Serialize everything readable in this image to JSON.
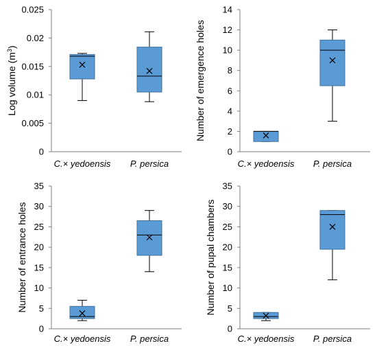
{
  "colors": {
    "box_fill": "#5b9bd5",
    "box_stroke": "#41719c",
    "line": "#000000",
    "axis": "#7f7f7f"
  },
  "chart_data": [
    {
      "type": "boxplot",
      "ylabel": "Log volume (m",
      "ylabel_superscript": "3",
      "ylabel_suffix": ")",
      "ylim": [
        0,
        0.025
      ],
      "yticks": [
        "0",
        "0.005",
        "0.01",
        "0.015",
        "0.02",
        "0.025"
      ],
      "categories": [
        "C.× yedoensis",
        "P. persica"
      ],
      "boxes": [
        {
          "min": 0.009,
          "q1": 0.0128,
          "median": 0.0168,
          "q3": 0.0171,
          "max": 0.0173,
          "mean": 0.0153
        },
        {
          "min": 0.0088,
          "q1": 0.0105,
          "median": 0.0133,
          "q3": 0.0184,
          "max": 0.0211,
          "mean": 0.0142
        }
      ]
    },
    {
      "type": "boxplot",
      "ylabel": "Number of emergence holes",
      "ylim": [
        0,
        14
      ],
      "yticks": [
        "0",
        "2",
        "4",
        "6",
        "8",
        "10",
        "12",
        "14"
      ],
      "categories": [
        "C.× yedoensis",
        "P. persica"
      ],
      "boxes": [
        {
          "min": 1,
          "q1": 1,
          "median": 2,
          "q3": 2,
          "max": 2,
          "mean": 1.6
        },
        {
          "min": 3,
          "q1": 6.5,
          "median": 10,
          "q3": 11,
          "max": 12,
          "mean": 9
        }
      ]
    },
    {
      "type": "boxplot",
      "ylabel": "Number of entrance holes",
      "ylim": [
        0,
        35
      ],
      "yticks": [
        "0",
        "5",
        "10",
        "15",
        "20",
        "25",
        "30",
        "35"
      ],
      "categories": [
        "C.× yedoensis",
        "P. persica"
      ],
      "boxes": [
        {
          "min": 2,
          "q1": 2.5,
          "median": 3,
          "q3": 5.5,
          "max": 7,
          "mean": 3.8
        },
        {
          "min": 14,
          "q1": 18,
          "median": 23,
          "q3": 26.5,
          "max": 29,
          "mean": 22.4
        }
      ]
    },
    {
      "type": "boxplot",
      "ylabel": "Number of pupal chambers",
      "ylim": [
        0,
        35
      ],
      "yticks": [
        "0",
        "5",
        "10",
        "15",
        "20",
        "25",
        "30",
        "35"
      ],
      "categories": [
        "C.× yedoensis",
        "P. persica"
      ],
      "boxes": [
        {
          "min": 2,
          "q1": 2.5,
          "median": 3,
          "q3": 4,
          "max": 4,
          "mean": 3.2
        },
        {
          "min": 12,
          "q1": 19.5,
          "median": 28,
          "q3": 29,
          "max": 29,
          "mean": 25
        }
      ]
    }
  ]
}
